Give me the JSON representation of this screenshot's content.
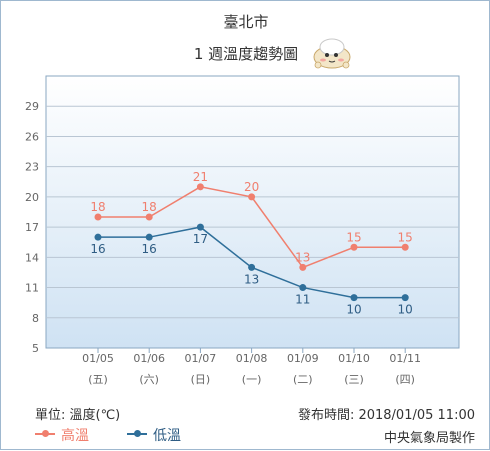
{
  "chart_data": {
    "type": "line",
    "title": "臺北市",
    "subtitle": "1 週溫度趨勢圖",
    "categories": [
      "01/05",
      "01/06",
      "01/07",
      "01/08",
      "01/09",
      "01/10",
      "01/11"
    ],
    "weekdays": [
      "(五)",
      "(六)",
      "(日)",
      "(一)",
      "(二)",
      "(三)",
      "(四)"
    ],
    "series": [
      {
        "name": "高溫",
        "values": [
          18,
          18,
          21,
          20,
          13,
          15,
          15
        ],
        "color": "#f07f6e"
      },
      {
        "name": "低溫",
        "values": [
          16,
          16,
          17,
          13,
          11,
          10,
          10
        ],
        "color": "#2f6f9a"
      }
    ],
    "ylim": [
      5,
      32
    ],
    "yticks": [
      5,
      8,
      11,
      14,
      17,
      20,
      23,
      26,
      29
    ],
    "grid": true,
    "legend": "bottom-left"
  },
  "footer": {
    "unit": "單位: 溫度(℃)",
    "issued": "發布時間: 2018/01/05 11:00",
    "producer": "中央氣象局製作"
  },
  "mascot_icon": "cloud-mascot-icon"
}
